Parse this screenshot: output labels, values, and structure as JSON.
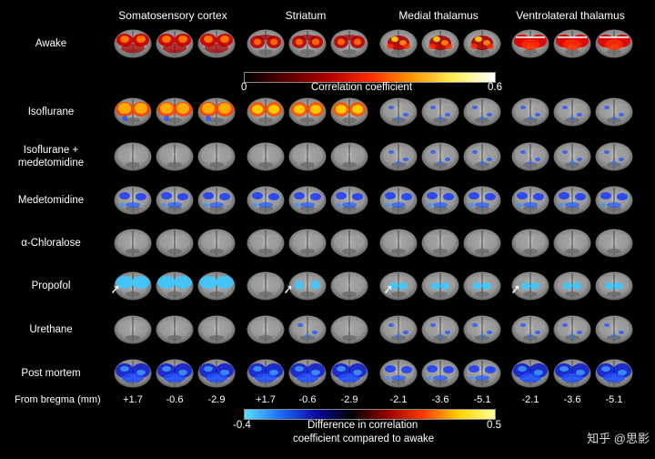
{
  "columns": [
    {
      "title": "Somatosensory cortex",
      "coords": [
        "+1.7",
        "-0.6",
        "-2.9"
      ]
    },
    {
      "title": "Striatum",
      "coords": [
        "+1.7",
        "-0.6",
        "-2.9"
      ]
    },
    {
      "title": "Medial thalamus",
      "coords": [
        "-2.1",
        "-3.6",
        "-5.1"
      ]
    },
    {
      "title": "Ventrolateral thalamus",
      "coords": [
        "-2.1",
        "-3.6",
        "-5.1"
      ]
    }
  ],
  "rows": [
    {
      "label": "Awake",
      "map": "corr",
      "grid": [
        [
          "cortex-strong",
          "cortex-strong",
          "cortex-strong"
        ],
        [
          "striatum-strong",
          "striatum-strong",
          "striatum-strong"
        ],
        [
          "thal-strong",
          "thal-strong",
          "thal-strong"
        ],
        [
          "vl-strong",
          "vl-strong",
          "vl-strong"
        ]
      ]
    },
    {
      "label": "Isoflurane",
      "map": "corr",
      "grid": [
        [
          "cortex-yellow",
          "cortex-yellow",
          "cortex-yellow"
        ],
        [
          "striatum-yellow",
          "striatum-yellow",
          "striatum-yellow"
        ],
        [
          "blue-light",
          "blue-light",
          "blue-light"
        ],
        [
          "blue-light",
          "blue-light",
          "blue-light"
        ]
      ]
    },
    {
      "label": "Isoflurane + medetomidine",
      "map": "diff",
      "grid": [
        [
          "none",
          "none",
          "none"
        ],
        [
          "none",
          "none",
          "none"
        ],
        [
          "blue-light",
          "blue-light",
          "blue-light"
        ],
        [
          "blue-light",
          "blue-light",
          "blue-light"
        ]
      ]
    },
    {
      "label": "Medetomidine",
      "map": "diff",
      "grid": [
        [
          "blue-medium",
          "blue-medium",
          "blue-medium"
        ],
        [
          "blue-medium",
          "blue-medium",
          "blue-medium"
        ],
        [
          "blue-medium",
          "blue-medium",
          "blue-medium"
        ],
        [
          "blue-medium",
          "blue-medium",
          "blue-medium"
        ]
      ]
    },
    {
      "label": "α-Chloralose",
      "map": "diff",
      "grid": [
        [
          "none",
          "none",
          "none"
        ],
        [
          "none",
          "none",
          "none"
        ],
        [
          "none",
          "none",
          "none"
        ],
        [
          "none",
          "none",
          "none"
        ]
      ]
    },
    {
      "label": "Propofol",
      "map": "diff",
      "grid": [
        [
          "cyan-cortex",
          "cyan-cortex",
          "cyan-cortex"
        ],
        [
          "none",
          "cyan-striatum",
          "none"
        ],
        [
          "cyan-thal",
          "cyan-thal",
          "cyan-thal"
        ],
        [
          "cyan-thal",
          "cyan-thal",
          "cyan-thal"
        ]
      ]
    },
    {
      "label": "Urethane",
      "map": "diff",
      "grid": [
        [
          "none",
          "none",
          "none"
        ],
        [
          "none",
          "blue-light",
          "none"
        ],
        [
          "blue-light",
          "blue-light",
          "blue-light"
        ],
        [
          "blue-light",
          "blue-light",
          "blue-light"
        ]
      ]
    },
    {
      "label": "Post mortem",
      "map": "diff",
      "grid": [
        [
          "blue-strong",
          "blue-strong",
          "blue-strong"
        ],
        [
          "blue-strong",
          "blue-strong",
          "blue-strong"
        ],
        [
          "blue-medium",
          "blue-medium",
          "blue-medium"
        ],
        [
          "blue-strong",
          "blue-strong",
          "blue-strong"
        ]
      ]
    }
  ],
  "arrow_rows": [
    "Propofol"
  ],
  "bregma_label": "From bregma (mm)",
  "colorbar_corr": {
    "min": "0",
    "max": "0.6",
    "label": "Correlation coefficient",
    "colors": [
      "#000000",
      "#5a0000",
      "#b00000",
      "#ff2a00",
      "#ff9800",
      "#ffee55",
      "#ffffff"
    ]
  },
  "colorbar_diff": {
    "min": "-0.4",
    "max": "0.5",
    "label_line1": "Difference in correlation",
    "label_line2": "coefficient compared to awake",
    "colors": [
      "#55e0ff",
      "#1e6cff",
      "#0a0aa0",
      "#000000",
      "#9a0000",
      "#ff3a00",
      "#ffd400",
      "#ffff99"
    ]
  },
  "watermark": "知乎 @思影"
}
